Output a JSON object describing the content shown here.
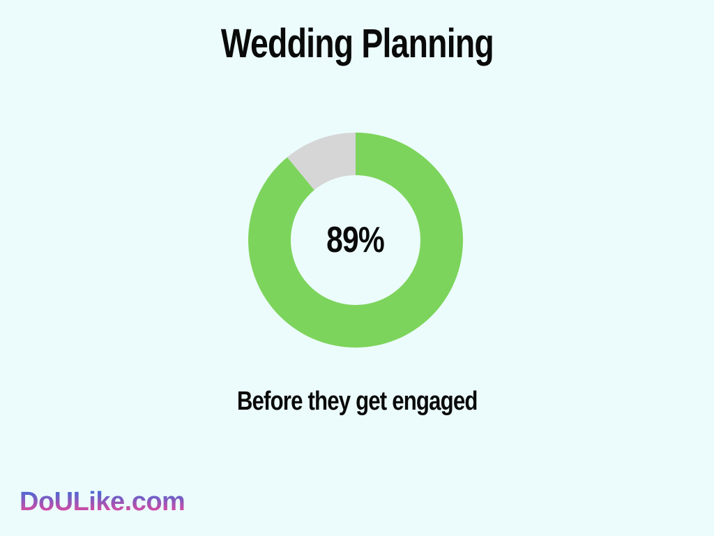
{
  "page": {
    "background_color": "#ECFCFC",
    "text_color": "#0a0a0a"
  },
  "header": {
    "title": "Wedding Planning"
  },
  "chart_data": {
    "type": "pie",
    "subtype": "donut",
    "title": "Wedding Planning",
    "values": [
      89,
      11
    ],
    "colors": [
      "#7DD45C",
      "#D6D6D6"
    ],
    "start_angle_deg": 0,
    "direction": "clockwise",
    "center_label": "89%",
    "caption": "Before they get engaged",
    "legend": "none"
  },
  "caption": {
    "text": "Before they get engaged"
  },
  "footer": {
    "logo_text": "DoULike.com",
    "logo_gradient_top": "#3E6AD8",
    "logo_gradient_bottom": "#E0489E"
  }
}
